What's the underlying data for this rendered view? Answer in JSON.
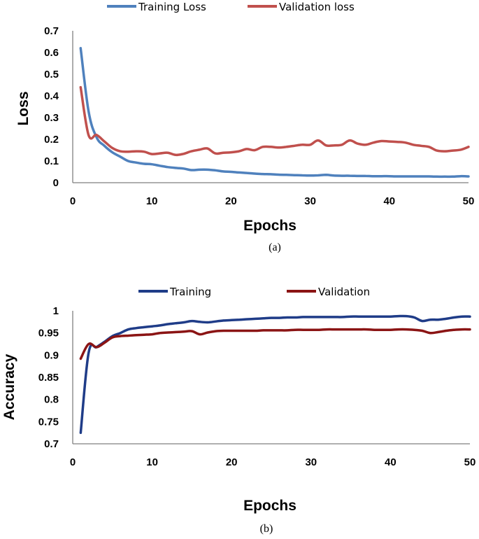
{
  "colors": {
    "training_loss": "#4f81bd",
    "validation_loss": "#c0504d",
    "training_acc": "#1f3c88",
    "validation_acc": "#8b1414"
  },
  "chart_data": [
    {
      "type": "line",
      "caption": "(a)",
      "xlabel": "Epochs",
      "ylabel": "Loss",
      "xlim": [
        0,
        50
      ],
      "ylim": [
        0,
        0.7
      ],
      "xticks": [
        "0",
        "10",
        "20",
        "30",
        "40",
        "50"
      ],
      "yticks": [
        "0",
        "0.1",
        "0.2",
        "0.3",
        "0.4",
        "0.5",
        "0.6",
        "0.7"
      ],
      "legend_position": "top",
      "x": [
        1,
        2,
        3,
        4,
        5,
        6,
        7,
        8,
        9,
        10,
        11,
        12,
        13,
        14,
        15,
        16,
        17,
        18,
        19,
        20,
        21,
        22,
        23,
        24,
        25,
        26,
        27,
        28,
        29,
        30,
        31,
        32,
        33,
        34,
        35,
        36,
        37,
        38,
        39,
        40,
        41,
        42,
        43,
        44,
        45,
        46,
        47,
        48,
        49,
        50
      ],
      "series": [
        {
          "name": "Training Loss",
          "color_key": "training_loss",
          "values": [
            0.62,
            0.33,
            0.21,
            0.17,
            0.14,
            0.12,
            0.1,
            0.093,
            0.087,
            0.085,
            0.078,
            0.072,
            0.068,
            0.065,
            0.058,
            0.06,
            0.06,
            0.057,
            0.052,
            0.05,
            0.047,
            0.045,
            0.042,
            0.04,
            0.039,
            0.037,
            0.036,
            0.035,
            0.034,
            0.033,
            0.034,
            0.036,
            0.033,
            0.032,
            0.032,
            0.031,
            0.031,
            0.03,
            0.03,
            0.03,
            0.029,
            0.029,
            0.029,
            0.029,
            0.029,
            0.028,
            0.028,
            0.028,
            0.03,
            0.029
          ]
        },
        {
          "name": "Validation loss",
          "color_key": "validation_loss",
          "values": [
            0.44,
            0.22,
            0.22,
            0.19,
            0.16,
            0.145,
            0.143,
            0.145,
            0.143,
            0.132,
            0.135,
            0.138,
            0.128,
            0.133,
            0.145,
            0.152,
            0.158,
            0.135,
            0.138,
            0.14,
            0.145,
            0.155,
            0.15,
            0.165,
            0.165,
            0.162,
            0.165,
            0.17,
            0.175,
            0.175,
            0.195,
            0.172,
            0.172,
            0.175,
            0.195,
            0.18,
            0.175,
            0.185,
            0.192,
            0.19,
            0.188,
            0.185,
            0.175,
            0.17,
            0.165,
            0.148,
            0.145,
            0.148,
            0.152,
            0.165
          ]
        }
      ]
    },
    {
      "type": "line",
      "caption": "(b)",
      "xlabel": "Epochs",
      "ylabel": "Accuracy",
      "xlim": [
        0,
        50
      ],
      "ylim": [
        0.7,
        1
      ],
      "xticks": [
        "0",
        "10",
        "20",
        "30",
        "40",
        "50"
      ],
      "yticks": [
        "0.7",
        "0.75",
        "0.8",
        "0.85",
        "0.9",
        "0.95",
        "1"
      ],
      "legend_position": "top",
      "x": [
        1,
        2,
        3,
        4,
        5,
        6,
        7,
        8,
        9,
        10,
        11,
        12,
        13,
        14,
        15,
        16,
        17,
        18,
        19,
        20,
        21,
        22,
        23,
        24,
        25,
        26,
        27,
        28,
        29,
        30,
        31,
        32,
        33,
        34,
        35,
        36,
        37,
        38,
        39,
        40,
        41,
        42,
        43,
        44,
        45,
        46,
        47,
        48,
        49,
        50
      ],
      "series": [
        {
          "name": "Training",
          "color_key": "training_acc",
          "values": [
            0.725,
            0.905,
            0.918,
            0.93,
            0.943,
            0.95,
            0.958,
            0.961,
            0.963,
            0.965,
            0.967,
            0.97,
            0.972,
            0.974,
            0.977,
            0.975,
            0.974,
            0.976,
            0.978,
            0.979,
            0.98,
            0.981,
            0.982,
            0.983,
            0.984,
            0.984,
            0.985,
            0.985,
            0.986,
            0.986,
            0.986,
            0.986,
            0.986,
            0.986,
            0.987,
            0.987,
            0.987,
            0.987,
            0.987,
            0.987,
            0.988,
            0.988,
            0.985,
            0.977,
            0.98,
            0.98,
            0.982,
            0.985,
            0.987,
            0.987
          ]
        },
        {
          "name": "Validation",
          "color_key": "validation_acc",
          "values": [
            0.892,
            0.925,
            0.918,
            0.928,
            0.94,
            0.943,
            0.944,
            0.945,
            0.946,
            0.947,
            0.95,
            0.951,
            0.952,
            0.953,
            0.954,
            0.947,
            0.951,
            0.954,
            0.955,
            0.955,
            0.955,
            0.955,
            0.955,
            0.956,
            0.956,
            0.956,
            0.956,
            0.957,
            0.957,
            0.957,
            0.957,
            0.958,
            0.958,
            0.958,
            0.958,
            0.958,
            0.958,
            0.957,
            0.957,
            0.957,
            0.958,
            0.958,
            0.957,
            0.955,
            0.95,
            0.952,
            0.955,
            0.957,
            0.958,
            0.958
          ]
        }
      ]
    }
  ]
}
